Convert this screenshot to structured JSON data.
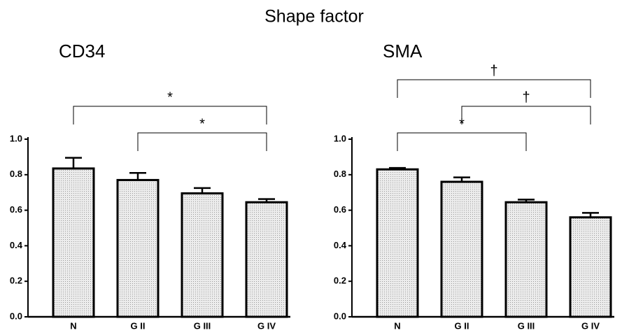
{
  "title": "Shape factor",
  "chart_data": [
    {
      "type": "bar",
      "title": "CD34",
      "categories": [
        "N",
        "G II",
        "G III",
        "G IV"
      ],
      "values": [
        0.835,
        0.77,
        0.695,
        0.645
      ],
      "errors": [
        0.06,
        0.04,
        0.03,
        0.018
      ],
      "color": "#d9d9d9",
      "ylim": [
        0,
        1
      ],
      "yticks": [
        {
          "value": 0,
          "label": "0.0"
        },
        0.2,
        0.4,
        0.6,
        0.8,
        {
          "value": 1,
          "label": "1.0"
        }
      ],
      "annotations": [
        {
          "label": "*",
          "categories": [
            "G II",
            "G IV"
          ]
        },
        {
          "label": "*",
          "categories": [
            "N",
            "G IV"
          ]
        }
      ]
    },
    {
      "type": "bar",
      "title": "SMA",
      "categories": [
        "N",
        "G II",
        "G III",
        "G IV"
      ],
      "values": [
        0.83,
        0.76,
        0.645,
        0.56
      ],
      "errors": [
        0.008,
        0.025,
        0.015,
        0.025
      ],
      "color": "#d9d9d9",
      "ylim": [
        0,
        1
      ],
      "yticks": [
        {
          "value": 0,
          "label": "0.0"
        },
        0.2,
        0.4,
        0.6,
        0.8,
        {
          "value": 1,
          "label": "1.0"
        }
      ],
      "annotations": [
        {
          "label": "*",
          "categories": [
            "N",
            "G III"
          ]
        },
        {
          "label": "†",
          "categories": [
            "G II",
            "G IV"
          ]
        },
        {
          "label": "†",
          "categories": [
            "N",
            "G IV"
          ]
        }
      ]
    }
  ]
}
